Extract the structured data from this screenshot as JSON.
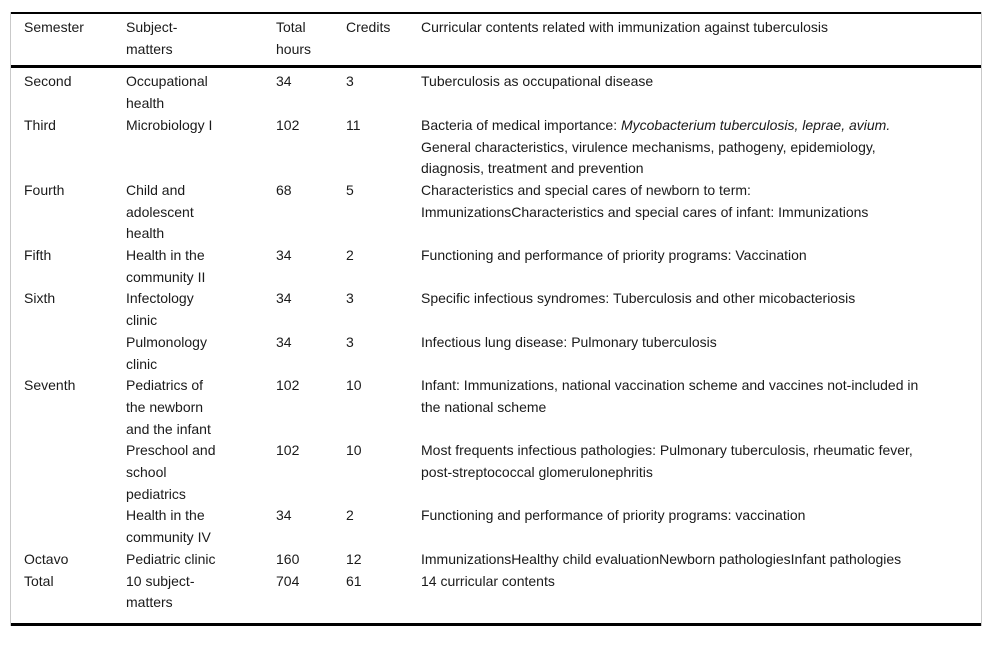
{
  "figure": {
    "columns": [
      {
        "id": "semester",
        "label": "Semester"
      },
      {
        "id": "subject",
        "label": "Subject-matters"
      },
      {
        "id": "hours",
        "label": "Total hours"
      },
      {
        "id": "credits",
        "label": "Credits"
      },
      {
        "id": "content",
        "label": "Curricular contents related with immunization against tuberculosis"
      }
    ],
    "rows": [
      {
        "semester": "Second",
        "subject": "Occupational health",
        "hours": "34",
        "credits": "3",
        "content": [
          {
            "text": "Tuberculosis as occupational disease"
          }
        ]
      },
      {
        "semester": "Third",
        "subject": "Microbiology I",
        "hours": "102",
        "credits": "11",
        "content": [
          {
            "text": "Bacteria of medical importance: "
          },
          {
            "text": "Mycobacterium tuberculosis, leprae, avium.",
            "italic": true
          },
          {
            "text": " General characteristics, virulence mechanisms, pathogeny, epidemiology, diagnosis, treatment and prevention"
          }
        ]
      },
      {
        "semester": "Fourth",
        "subject": "Child and adolescent health",
        "hours": "68",
        "credits": "5",
        "content": [
          {
            "text": "Characteristics and special cares of newborn to term: ImmunizationsCharacteristics and special cares of infant: Immunizations"
          }
        ]
      },
      {
        "semester": "Fifth",
        "subject": "Health in the community II",
        "hours": "34",
        "credits": "2",
        "content": [
          {
            "text": "Functioning and performance of priority programs: Vaccination"
          }
        ]
      },
      {
        "semester": "Sixth",
        "subject": "Infectology clinic",
        "hours": "34",
        "credits": "3",
        "content": [
          {
            "text": "Specific infectious syndromes: Tuberculosis and other micobacteriosis"
          }
        ]
      },
      {
        "semester": "",
        "subject": "Pulmonology clinic",
        "hours": "34",
        "credits": "3",
        "content": [
          {
            "text": "Infectious lung disease: Pulmonary tuberculosis"
          }
        ]
      },
      {
        "semester": "Seventh",
        "subject": "Pediatrics of the newborn and the infant",
        "hours": "102",
        "credits": "10",
        "content": [
          {
            "text": "Infant: Immunizations, national vaccination scheme and vaccines not-included in the national scheme"
          }
        ]
      },
      {
        "semester": "",
        "subject": "Preschool and school pediatrics",
        "hours": "102",
        "credits": "10",
        "content": [
          {
            "text": "Most frequents infectious pathologies: Pulmonary tuberculosis, rheumatic fever, post-streptococcal glomerulonephritis"
          }
        ]
      },
      {
        "semester": "",
        "subject": "Health in the community IV",
        "hours": "34",
        "credits": "2",
        "content": [
          {
            "text": "Functioning and performance of priority programs: vaccination"
          }
        ]
      },
      {
        "semester": "Octavo",
        "subject": "Pediatric clinic",
        "hours": "160",
        "credits": "12",
        "content": [
          {
            "text": "ImmunizationsHealthy child evaluationNewborn pathologiesInfant pathologies"
          }
        ]
      },
      {
        "semester": "Total",
        "subject": "10 subject-matters",
        "hours": "704",
        "credits": "61",
        "content": [
          {
            "text": "14 curricular contents"
          }
        ]
      }
    ]
  }
}
